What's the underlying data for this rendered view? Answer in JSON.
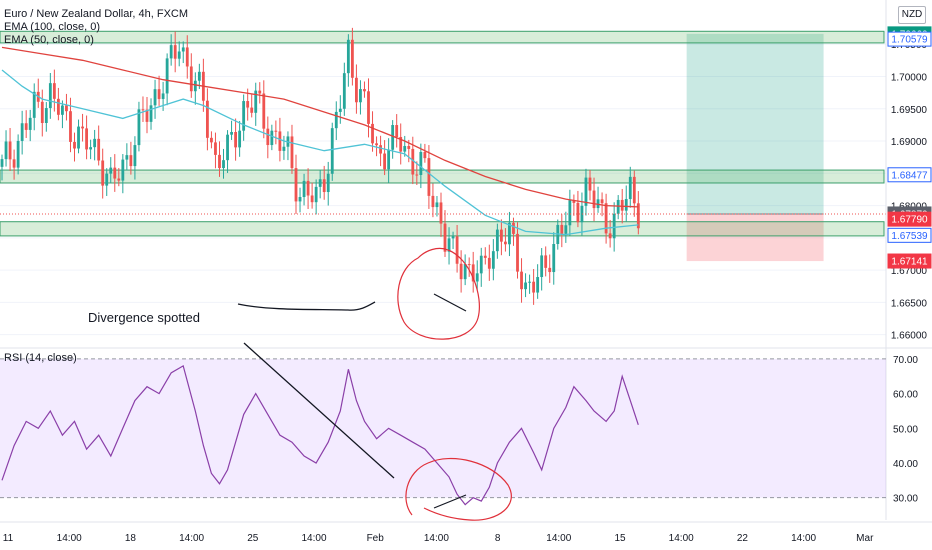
{
  "header": {
    "symbol": "Euro / New Zealand Dollar, 4h, FXCM",
    "ema100_label": "EMA (100, close, 0)",
    "ema50_label": "EMA (50, close, 0)",
    "currency": "NZD"
  },
  "rsi_panel": {
    "label": "RSI (14, close)"
  },
  "annotation": {
    "text": "Divergence spotted"
  },
  "chart_data": [
    {
      "type": "candlestick",
      "title": "Euro / New Zealand Dollar, 4h, FXCM",
      "ylim": [
        1.6584,
        1.7072
      ],
      "y_ticks": [
        "1.66000",
        "1.66500",
        "1.67000",
        "1.67500",
        "1.68000",
        "1.68500",
        "1.69000",
        "1.69500",
        "1.70000",
        "1.70500"
      ],
      "x_ticks": [
        "11",
        "14:00",
        "18",
        "14:00",
        "25",
        "14:00",
        "Feb",
        "14:00",
        "8",
        "14:00",
        "15",
        "14:00",
        "22",
        "14:00",
        "Mar"
      ],
      "close_path": [
        [
          0,
          1.686
        ],
        [
          4,
          1.69
        ],
        [
          8,
          1.695
        ],
        [
          12,
          1.697
        ],
        [
          16,
          1.693
        ],
        [
          20,
          1.69
        ],
        [
          24,
          1.688
        ],
        [
          27,
          1.683
        ],
        [
          30,
          1.686
        ],
        [
          34,
          1.692
        ],
        [
          38,
          1.697
        ],
        [
          42,
          1.702
        ],
        [
          44,
          1.7055
        ],
        [
          47,
          1.7
        ],
        [
          50,
          1.696
        ],
        [
          53,
          1.687
        ],
        [
          56,
          1.688
        ],
        [
          60,
          1.695
        ],
        [
          63,
          1.696
        ],
        [
          67,
          1.691
        ],
        [
          71,
          1.688
        ],
        [
          74,
          1.682
        ],
        [
          78,
          1.681
        ],
        [
          81,
          1.687
        ],
        [
          84,
          1.696
        ],
        [
          86,
          1.704
        ],
        [
          88,
          1.699
        ],
        [
          91,
          1.693
        ],
        [
          93,
          1.688
        ],
        [
          96,
          1.689
        ],
        [
          99,
          1.69
        ],
        [
          102,
          1.687
        ],
        [
          105,
          1.685
        ],
        [
          107,
          1.681
        ],
        [
          109,
          1.678
        ],
        [
          110,
          1.675
        ],
        [
          112,
          1.672
        ],
        [
          114,
          1.671
        ],
        [
          117,
          1.67
        ],
        [
          119,
          1.669
        ],
        [
          121,
          1.673
        ],
        [
          123,
          1.675
        ],
        [
          126,
          1.675
        ],
        [
          128,
          1.672
        ],
        [
          130,
          1.667
        ],
        [
          133,
          1.668
        ],
        [
          136,
          1.673
        ],
        [
          139,
          1.676
        ],
        [
          142,
          1.68
        ],
        [
          145,
          1.682
        ],
        [
          148,
          1.68
        ],
        [
          150,
          1.678
        ],
        [
          152,
          1.677
        ],
        [
          154,
          1.68
        ],
        [
          156,
          1.683
        ],
        [
          158,
          1.6795
        ]
      ],
      "ema100": [
        [
          0,
          1.7045
        ],
        [
          10,
          1.7035
        ],
        [
          20,
          1.7025
        ],
        [
          30,
          1.701
        ],
        [
          40,
          1.6995
        ],
        [
          50,
          1.6985
        ],
        [
          60,
          1.6975
        ],
        [
          70,
          1.6965
        ],
        [
          80,
          1.6945
        ],
        [
          90,
          1.6925
        ],
        [
          100,
          1.69
        ],
        [
          110,
          1.687
        ],
        [
          120,
          1.6845
        ],
        [
          130,
          1.6825
        ],
        [
          140,
          1.681
        ],
        [
          150,
          1.68
        ],
        [
          158,
          1.6798
        ]
      ],
      "ema50": [
        [
          0,
          1.701
        ],
        [
          5,
          1.6985
        ],
        [
          10,
          1.6965
        ],
        [
          20,
          1.695
        ],
        [
          30,
          1.6935
        ],
        [
          40,
          1.6955
        ],
        [
          45,
          1.6965
        ],
        [
          50,
          1.6955
        ],
        [
          60,
          1.6925
        ],
        [
          70,
          1.69
        ],
        [
          80,
          1.6885
        ],
        [
          90,
          1.6895
        ],
        [
          100,
          1.688
        ],
        [
          110,
          1.683
        ],
        [
          120,
          1.6785
        ],
        [
          130,
          1.676
        ],
        [
          140,
          1.6755
        ],
        [
          150,
          1.6765
        ],
        [
          158,
          1.677
        ]
      ],
      "zones": [
        {
          "from": 1.7052,
          "to": 1.707
        },
        {
          "from": 1.6835,
          "to": 1.6855
        },
        {
          "from": 1.6753,
          "to": 1.6775
        }
      ],
      "trade_box": {
        "bar_from": 170,
        "bar_to": 204,
        "entry": 1.6787,
        "target": 1.7066,
        "stop": 1.6714
      },
      "price_labels": [
        {
          "value": 1.7066,
          "text": "1.70660",
          "color": "#089981",
          "filled": true
        },
        {
          "value": 1.70579,
          "text": "1.70579",
          "color": "#2962ff",
          "filled": false
        },
        {
          "value": 1.68477,
          "text": "1.68477",
          "color": "#2962ff",
          "filled": false
        },
        {
          "value": 1.6787,
          "text": "1.67870",
          "color": "#5d606b",
          "filled": true
        },
        {
          "value": 1.6779,
          "text": "1.67790",
          "color": "#f23645",
          "filled": true
        },
        {
          "value": 1.67539,
          "text": "1.67539",
          "color": "#2962ff",
          "filled": false
        },
        {
          "value": 1.67141,
          "text": "1.67141",
          "color": "#f23645",
          "filled": true
        }
      ]
    },
    {
      "type": "line",
      "title": "RSI (14, close)",
      "ylim": [
        25,
        72
      ],
      "y_ticks": [
        "30.00",
        "40.00",
        "50.00",
        "60.00",
        "70.00"
      ],
      "band": [
        30,
        70
      ],
      "series": [
        {
          "name": "RSI (14, close)",
          "points": [
            [
              0,
              35
            ],
            [
              3,
              45
            ],
            [
              6,
              52
            ],
            [
              9,
              50
            ],
            [
              12,
              55
            ],
            [
              15,
              48
            ],
            [
              18,
              52
            ],
            [
              21,
              44
            ],
            [
              24,
              48
            ],
            [
              27,
              42
            ],
            [
              30,
              50
            ],
            [
              33,
              58
            ],
            [
              36,
              62
            ],
            [
              39,
              60
            ],
            [
              42,
              66
            ],
            [
              45,
              68
            ],
            [
              48,
              55
            ],
            [
              50,
              45
            ],
            [
              52,
              37
            ],
            [
              54,
              34
            ],
            [
              56,
              38
            ],
            [
              58,
              46
            ],
            [
              60,
              54
            ],
            [
              63,
              60
            ],
            [
              66,
              54
            ],
            [
              69,
              48
            ],
            [
              72,
              46
            ],
            [
              75,
              42
            ],
            [
              78,
              40
            ],
            [
              81,
              46
            ],
            [
              84,
              55
            ],
            [
              86,
              67
            ],
            [
              88,
              58
            ],
            [
              90,
              52
            ],
            [
              93,
              47
            ],
            [
              96,
              50
            ],
            [
              99,
              48
            ],
            [
              102,
              46
            ],
            [
              105,
              44
            ],
            [
              108,
              40
            ],
            [
              111,
              36
            ],
            [
              113,
              31
            ],
            [
              115,
              28
            ],
            [
              117,
              30
            ],
            [
              119,
              29
            ],
            [
              121,
              33
            ],
            [
              123,
              40
            ],
            [
              126,
              46
            ],
            [
              129,
              50
            ],
            [
              132,
              43
            ],
            [
              134,
              38
            ],
            [
              137,
              50
            ],
            [
              140,
              56
            ],
            [
              142,
              62
            ],
            [
              145,
              58
            ],
            [
              147,
              55
            ],
            [
              150,
              52
            ],
            [
              152,
              55
            ],
            [
              154,
              65
            ],
            [
              156,
              58
            ],
            [
              158,
              51
            ]
          ]
        }
      ]
    }
  ],
  "colors": {
    "up": "#26a69a",
    "down": "#ef5350",
    "ema100": "#e0433e",
    "ema50": "#4fc3d6",
    "rsi": "#8a3fa8",
    "zone_fill": "rgba(76,175,80,0.22)",
    "target_fill": "rgba(8,153,129,0.22)",
    "stop_fill": "rgba(242,54,69,0.22)",
    "rsi_band": "rgba(180,130,255,0.16)",
    "markup_red": "#e0303a"
  }
}
